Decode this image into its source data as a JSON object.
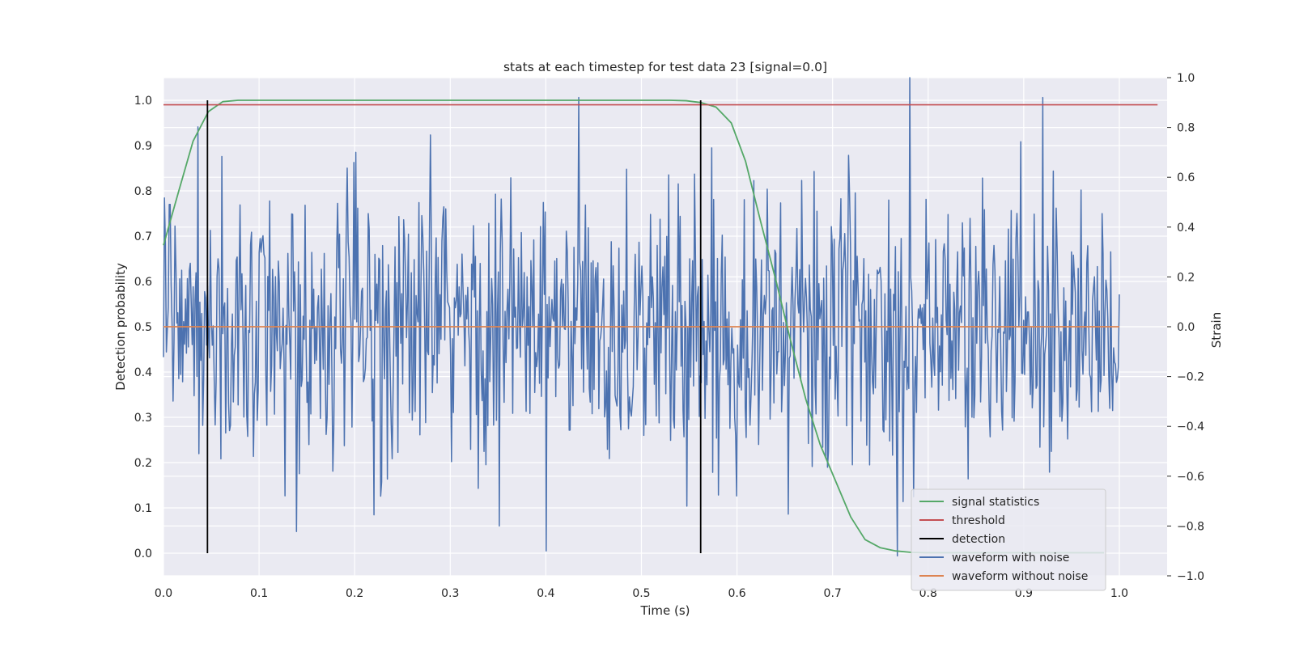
{
  "chart_data": {
    "type": "line",
    "title": "stats at each timestep for test data 23 [signal=0.0]",
    "xlabel": "Time (s)",
    "ylabel": "Detection probability",
    "y2label": "Strain",
    "xlim": [
      0.0,
      1.05
    ],
    "ylim": [
      -0.05,
      1.05
    ],
    "y2lim": [
      -1.0,
      1.0
    ],
    "x_ticks": [
      0.0,
      0.1,
      0.2,
      0.3,
      0.4,
      0.5,
      0.6,
      0.7,
      0.8,
      0.9,
      1.0
    ],
    "x_tick_labels": [
      "0.0",
      "0.1",
      "0.2",
      "0.3",
      "0.4",
      "0.5",
      "0.6",
      "0.7",
      "0.8",
      "0.9",
      "1.0"
    ],
    "y_ticks": [
      0.0,
      0.1,
      0.2,
      0.3,
      0.4,
      0.5,
      0.6,
      0.7,
      0.8,
      0.9,
      1.0
    ],
    "y_tick_labels": [
      "0.0",
      "0.1",
      "0.2",
      "0.3",
      "0.4",
      "0.5",
      "0.6",
      "0.7",
      "0.8",
      "0.9",
      "1.0"
    ],
    "y2_ticks": [
      -1.0,
      -0.8,
      -0.6,
      -0.4,
      -0.2,
      0.0,
      0.2,
      0.4,
      0.6,
      0.8,
      1.0
    ],
    "y2_tick_labels": [
      "−1.0",
      "−0.8",
      "−0.6",
      "−0.4",
      "−0.2",
      "0.0",
      "0.2",
      "0.4",
      "0.6",
      "0.8",
      "1.0"
    ],
    "grid": true,
    "legend_position": "lower-right",
    "colors": {
      "background": "#eaeaf2",
      "grid": "#ffffff",
      "signal_statistics": "#55a868",
      "threshold": "#c44e52",
      "detection": "#000000",
      "waveform_with_noise": "#4c72b0",
      "waveform_without_noise": "#dd8452"
    },
    "series": [
      {
        "name": "signal statistics",
        "axis": "left",
        "x": [
          0.0,
          0.016,
          0.031,
          0.047,
          0.062,
          0.078,
          0.094,
          0.109,
          0.125,
          0.2,
          0.3,
          0.4,
          0.5,
          0.53,
          0.547,
          0.562,
          0.578,
          0.594,
          0.609,
          0.625,
          0.641,
          0.656,
          0.672,
          0.687,
          0.703,
          0.719,
          0.734,
          0.75,
          0.766,
          0.781,
          0.797,
          0.812,
          0.828,
          0.9,
          0.95,
          0.984
        ],
        "y": [
          0.68,
          0.8,
          0.91,
          0.975,
          0.997,
          1.0,
          1.0,
          1.0,
          1.0,
          1.0,
          1.0,
          1.0,
          1.0,
          1.0,
          0.999,
          0.995,
          0.985,
          0.95,
          0.865,
          0.73,
          0.6,
          0.47,
          0.34,
          0.24,
          0.16,
          0.08,
          0.03,
          0.012,
          0.005,
          0.002,
          0.001,
          0.001,
          0.001,
          0.001,
          0.001,
          0.001
        ]
      },
      {
        "name": "threshold",
        "axis": "left",
        "x": [
          0.0,
          1.04
        ],
        "y": [
          0.99,
          0.99
        ]
      },
      {
        "name": "detection",
        "axis": "left",
        "x_positions": [
          0.046,
          0.562
        ],
        "y_range": [
          0.0,
          1.0
        ]
      },
      {
        "name": "waveform with noise",
        "axis": "right",
        "x_range": [
          0.0,
          1.0
        ],
        "n_points": 1000,
        "approx_std": 0.28,
        "notable_peaks": [
          {
            "x": 0.781,
            "y": 1.0
          },
          {
            "x": 0.92,
            "y": 0.92
          },
          {
            "x": 0.279,
            "y": 0.77
          },
          {
            "x": 0.4,
            "y": -0.9
          },
          {
            "x": 0.351,
            "y": -0.8
          }
        ]
      },
      {
        "name": "waveform without noise",
        "axis": "right",
        "x": [
          0.0,
          1.0
        ],
        "y": [
          0.0,
          0.0
        ]
      }
    ]
  },
  "legend": {
    "items": [
      {
        "label": "signal statistics",
        "color": "#55a868"
      },
      {
        "label": "threshold",
        "color": "#c44e52"
      },
      {
        "label": "detection",
        "color": "#000000"
      },
      {
        "label": "waveform with noise",
        "color": "#4c72b0"
      },
      {
        "label": "waveform without noise",
        "color": "#dd8452"
      }
    ]
  }
}
